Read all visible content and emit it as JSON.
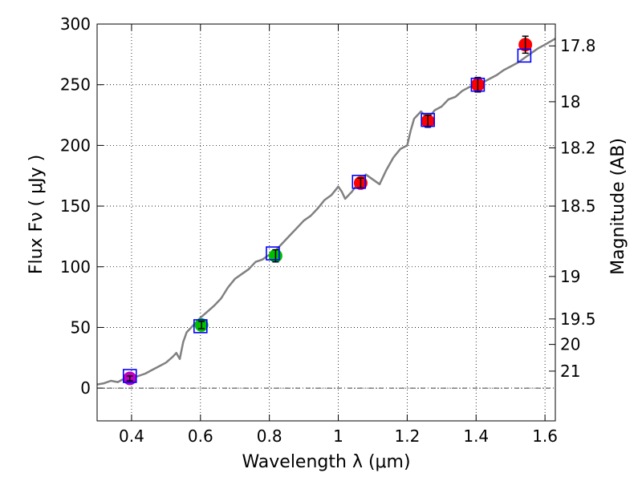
{
  "chart_data": {
    "type": "scatter",
    "xlabel": "Wavelength  λ (μm)",
    "ylabel": "Flux  Fν  ( μJy )",
    "ylabel_right": "Magnitude (AB)",
    "xlim": [
      0.3,
      1.63
    ],
    "ylim": [
      -27,
      300
    ],
    "xticks": [
      {
        "value": 0.4,
        "label": "0.4"
      },
      {
        "value": 0.6,
        "label": "0.6"
      },
      {
        "value": 0.8,
        "label": "0.8"
      },
      {
        "value": 1.0,
        "label": "1"
      },
      {
        "value": 1.2,
        "label": "1.2"
      },
      {
        "value": 1.4,
        "label": "1.4"
      },
      {
        "value": 1.6,
        "label": "1.6"
      }
    ],
    "yticks": [
      {
        "value": 0,
        "label": "0"
      },
      {
        "value": 50,
        "label": "50"
      },
      {
        "value": 100,
        "label": "100"
      },
      {
        "value": 150,
        "label": "150"
      },
      {
        "value": 200,
        "label": "200"
      },
      {
        "value": 250,
        "label": "250"
      },
      {
        "value": 300,
        "label": "300"
      }
    ],
    "mag_ticks": [
      {
        "flux": 282,
        "label": "17.8"
      },
      {
        "flux": 236,
        "label": "18"
      },
      {
        "flux": 198,
        "label": "18.2"
      },
      {
        "flux": 150,
        "label": "18.5"
      },
      {
        "flux": 92,
        "label": "19"
      },
      {
        "flux": 57,
        "label": "19.5"
      },
      {
        "flux": 36,
        "label": "20"
      },
      {
        "flux": 14,
        "label": "21"
      }
    ],
    "grid": true,
    "zero_line": 0,
    "spectrum": {
      "color": "#808080",
      "x": [
        0.3,
        0.32,
        0.34,
        0.36,
        0.38,
        0.4,
        0.42,
        0.44,
        0.46,
        0.48,
        0.5,
        0.52,
        0.53,
        0.54,
        0.55,
        0.56,
        0.58,
        0.6,
        0.62,
        0.64,
        0.66,
        0.68,
        0.7,
        0.72,
        0.74,
        0.76,
        0.78,
        0.8,
        0.82,
        0.84,
        0.86,
        0.88,
        0.9,
        0.92,
        0.94,
        0.96,
        0.98,
        1.0,
        1.01,
        1.02,
        1.04,
        1.06,
        1.08,
        1.1,
        1.12,
        1.14,
        1.16,
        1.18,
        1.2,
        1.21,
        1.22,
        1.24,
        1.26,
        1.28,
        1.3,
        1.32,
        1.34,
        1.36,
        1.38,
        1.4,
        1.42,
        1.44,
        1.46,
        1.48,
        1.5,
        1.52,
        1.54,
        1.56,
        1.58,
        1.6,
        1.63
      ],
      "y": [
        3,
        4,
        6,
        5,
        8,
        8,
        10,
        12,
        15,
        18,
        21,
        26,
        29,
        24,
        38,
        46,
        52,
        58,
        63,
        68,
        74,
        83,
        90,
        94,
        98,
        104,
        106,
        110,
        114,
        120,
        126,
        132,
        138,
        142,
        148,
        155,
        159,
        166,
        162,
        156,
        162,
        170,
        176,
        172,
        168,
        180,
        190,
        197,
        200,
        212,
        222,
        228,
        222,
        229,
        232,
        238,
        240,
        245,
        248,
        250,
        252,
        255,
        258,
        262,
        265,
        268,
        272,
        276,
        280,
        283,
        288
      ]
    },
    "series": [
      {
        "name": "violet",
        "color": "#bf00bf",
        "points": [
          {
            "x": 0.395,
            "y": 8,
            "err": 2
          }
        ]
      },
      {
        "name": "green",
        "color": "#00bf00",
        "points": [
          {
            "x": 0.603,
            "y": 52,
            "err": 3
          },
          {
            "x": 0.818,
            "y": 109,
            "err": 5
          }
        ]
      },
      {
        "name": "red",
        "color": "#ff0000",
        "points": [
          {
            "x": 1.065,
            "y": 169,
            "err": 4
          },
          {
            "x": 1.26,
            "y": 220,
            "err": 5
          },
          {
            "x": 1.405,
            "y": 250,
            "err": 6
          },
          {
            "x": 1.543,
            "y": 283,
            "err": 7
          }
        ]
      }
    ],
    "model_points": {
      "name": "model",
      "color": "#0000ff",
      "points": [
        {
          "x": 0.395,
          "y": 10
        },
        {
          "x": 0.6,
          "y": 51
        },
        {
          "x": 0.81,
          "y": 111
        },
        {
          "x": 1.06,
          "y": 170
        },
        {
          "x": 1.26,
          "y": 221
        },
        {
          "x": 1.405,
          "y": 250
        },
        {
          "x": 1.54,
          "y": 274
        }
      ]
    }
  }
}
